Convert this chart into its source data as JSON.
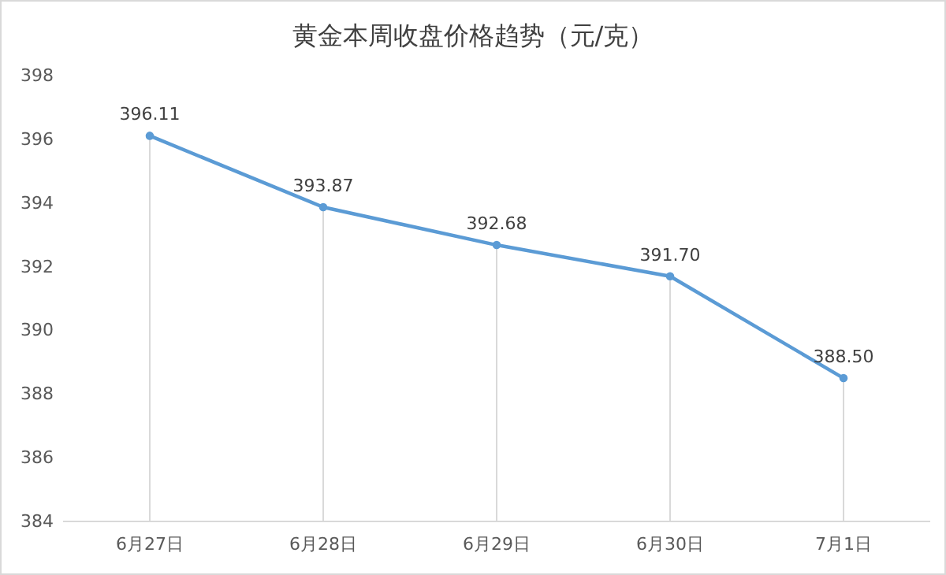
{
  "chart_data": {
    "type": "line",
    "title": "黄金本周收盘价格趋势（元/克）",
    "categories": [
      "6月27日",
      "6月28日",
      "6月29日",
      "6月30日",
      "7月1日"
    ],
    "series": [
      {
        "color": "#5b9bd5",
        "values": [
          396.11,
          393.87,
          392.68,
          391.7,
          388.5
        ]
      }
    ],
    "value_labels": [
      "396.11",
      "393.87",
      "392.68",
      "391.70",
      "388.50"
    ],
    "ylim": [
      384,
      398
    ],
    "yticks": [
      384,
      386,
      388,
      390,
      392,
      394,
      396,
      398
    ],
    "grid": "x",
    "marker": "circle",
    "line_style": "solid"
  }
}
